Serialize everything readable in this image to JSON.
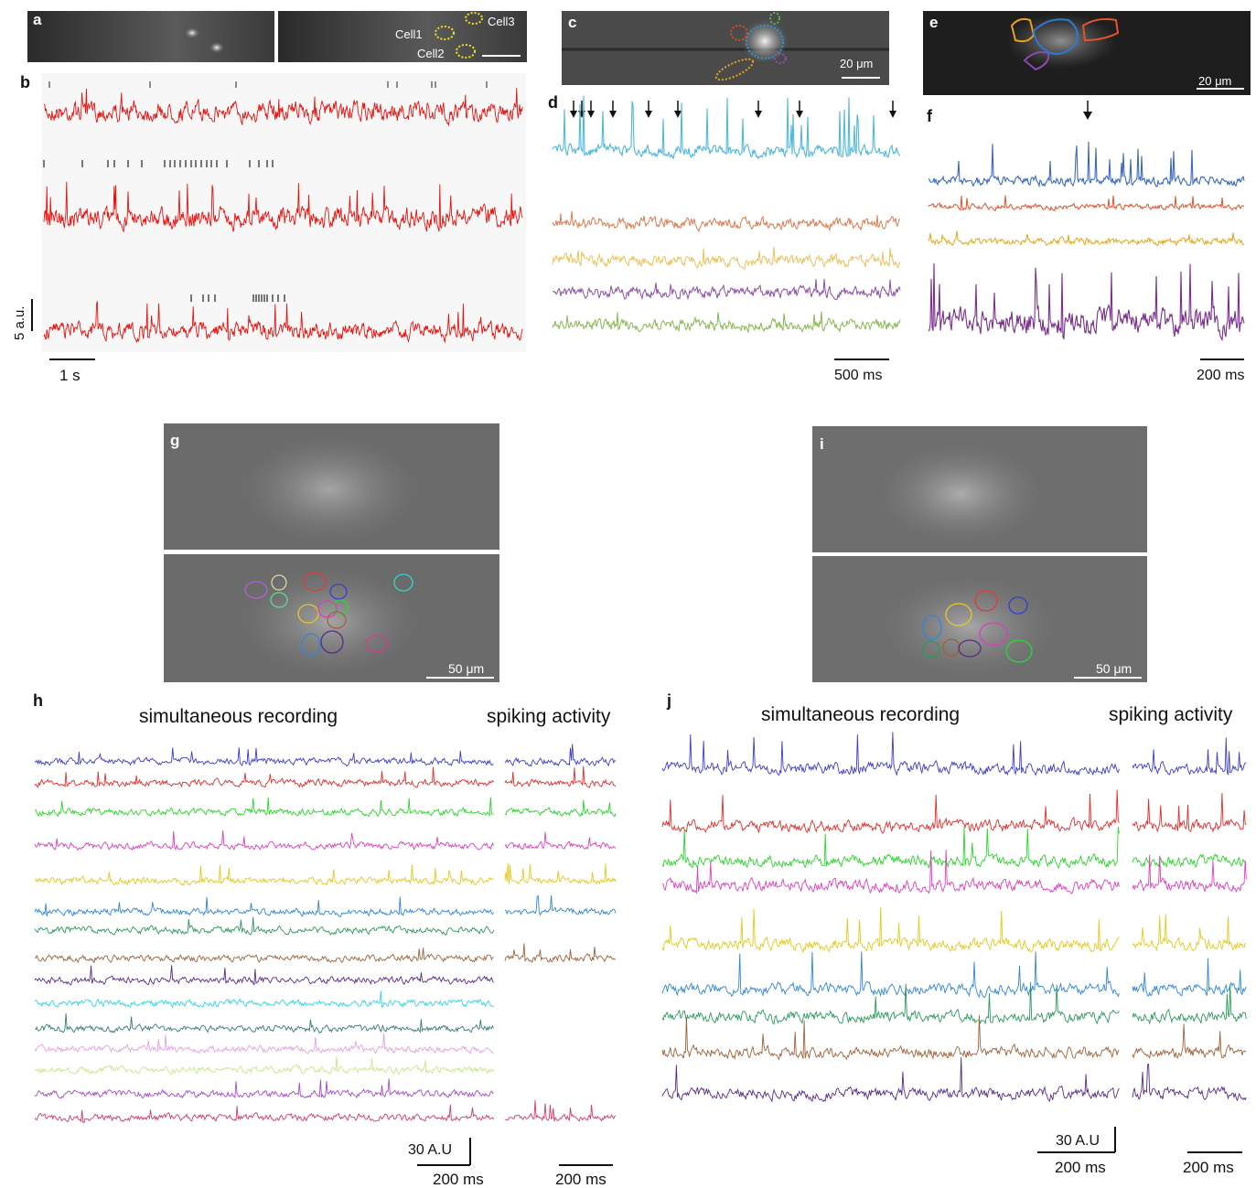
{
  "panels": {
    "a": {
      "letter": "a",
      "cells": [
        "Cell1",
        "Cell2",
        "Cell3"
      ]
    },
    "b": {
      "letter": "b",
      "ybar_label": "5 a.u.",
      "xbar_label": "1 s"
    },
    "c": {
      "letter": "c",
      "scale_label": "20 μm"
    },
    "d": {
      "letter": "d",
      "scale_label": "500 ms"
    },
    "e": {
      "letter": "e",
      "scale_label": "20 μm"
    },
    "f": {
      "letter": "f",
      "scale_label": "200 ms"
    },
    "g": {
      "letter": "g",
      "scale_label": "50 μm"
    },
    "i": {
      "letter": "i",
      "scale_label": "50 μm"
    },
    "h": {
      "letter": "h",
      "title_left": "simultaneous recording",
      "title_right": "spiking activity",
      "ybar_label": "30 A.U",
      "xbar_label_left": "200 ms",
      "xbar_label_right": "200 ms"
    },
    "j": {
      "letter": "j",
      "title_left": "simultaneous recording",
      "title_right": "spiking activity",
      "ybar_label": "30 A.U",
      "xbar_label_left": "200 ms",
      "xbar_label_right": "200 ms"
    }
  },
  "colors": {
    "b_trace": "#e8120f",
    "d_traces": [
      "#4fb8dc",
      "#de7b50",
      "#eec15c",
      "#8b4fa8",
      "#86b94f"
    ],
    "f_traces": [
      "#3a68c4",
      "#e4532c",
      "#e8a617",
      "#7b2d90"
    ],
    "h_traces": [
      "#3b3bd8",
      "#e82a2a",
      "#27d827",
      "#e23ec0",
      "#e6c81c",
      "#2f86de",
      "#2a9a5a",
      "#a0623a",
      "#5a2a8a",
      "#2fd8e8",
      "#3a7a7a",
      "#e6a0e6",
      "#c8e88a",
      "#a848d0",
      "#d83a6a"
    ],
    "j_traces": [
      "#3b3bd8",
      "#e82a2a",
      "#27d827",
      "#e23ec0",
      "#e6c81c",
      "#2f86de",
      "#2a9a5a",
      "#a0623a",
      "#5a2a8a"
    ]
  }
}
